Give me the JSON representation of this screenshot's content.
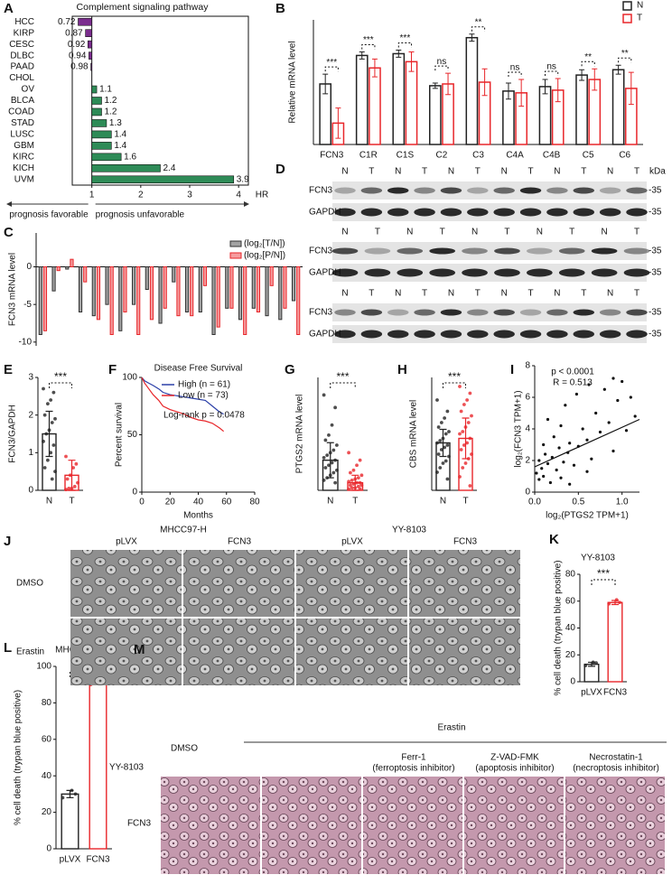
{
  "chart_data": [
    {
      "type": "bar",
      "orientation": "horizontal",
      "panel": "A",
      "title": "Complement signaling pathway",
      "categories": [
        "HCC",
        "KIRP",
        "CESC",
        "DLBC",
        "PAAD",
        "CHOL",
        "OV",
        "BLCA",
        "COAD",
        "STAD",
        "LUSC",
        "GBM",
        "KIRC",
        "KICH",
        "UVM"
      ],
      "values": [
        0.72,
        0.87,
        0.92,
        0.94,
        0.98,
        null,
        1.1,
        1.2,
        1.2,
        1.3,
        1.4,
        1.4,
        1.6,
        2.4,
        3.9
      ],
      "base": 1,
      "color_below": "#7b2d8e",
      "color_above": "#2e8b57",
      "xlim": [
        0.6,
        4.2
      ],
      "xticks": [
        1,
        2,
        3,
        4
      ],
      "xlabel": "HR",
      "annotations": [
        "prognosis favorable",
        "prognosis unfavorable"
      ]
    },
    {
      "type": "bar",
      "panel": "B",
      "ylabel": "Relative mRNA level",
      "fill": "hollow",
      "legend": "top-right",
      "categories": [
        "FCN3",
        "C1R",
        "C1S",
        "C2",
        "C3",
        "C4A",
        "C4B",
        "C5",
        "C6"
      ],
      "series": [
        {
          "name": "N",
          "color": "#222222",
          "values": [
            6.8,
            10,
            10.2,
            6.6,
            12,
            6,
            6.5,
            7.8,
            8.4
          ],
          "errors": [
            1.1,
            0.4,
            0.4,
            0.3,
            0.4,
            0.9,
            0.8,
            0.6,
            0.5
          ]
        },
        {
          "name": "T",
          "color": "#e8262a",
          "values": [
            2.4,
            8.6,
            9.3,
            6.8,
            7,
            5.8,
            6.1,
            7.3,
            6.3
          ],
          "errors": [
            1.7,
            1,
            1.1,
            1.2,
            1.5,
            1.5,
            1.3,
            1.2,
            1.8
          ]
        }
      ],
      "significance": [
        "***",
        "***",
        "***",
        "ns",
        "**",
        "ns",
        "ns",
        "**",
        "**"
      ],
      "ylim": [
        0,
        14
      ]
    },
    {
      "type": "bar",
      "panel": "C",
      "ylabel": "FCN3 mRNA level",
      "legend": "top-right",
      "categories": [
        null,
        null,
        null,
        null,
        null,
        null,
        null,
        null,
        null,
        null,
        null,
        null,
        null,
        null,
        null,
        null,
        null,
        null,
        null,
        null
      ],
      "series": [
        {
          "name": "(log₂[T/N])",
          "color": "#333333",
          "values": [
            -9,
            -3.2,
            -0.3,
            -6,
            -6.5,
            -5,
            -8.5,
            -5,
            -3,
            -7.5,
            -2,
            -6,
            -6,
            -9,
            -5.5,
            -7,
            -5.5,
            -6.5,
            -7,
            -4.5
          ]
        },
        {
          "name": "(log₂[P/N])",
          "color": "#e8262a",
          "values": [
            -8.5,
            -0.5,
            1,
            -2,
            -7,
            -9,
            -6,
            -9,
            -7,
            -5.5,
            -6.5,
            -6.5,
            -2.5,
            -8,
            -5.5,
            -9,
            -6,
            -2.5,
            -5.5,
            -9
          ]
        }
      ],
      "ylim": [
        -10.5,
        4.5
      ],
      "yticks": [
        0,
        -5,
        -10
      ]
    },
    {
      "type": "dot_bar",
      "panel": "E",
      "ylabel": "FCN3/GAPDH",
      "categories": [
        "N",
        "T"
      ],
      "values": [
        1.5,
        0.4
      ],
      "errors": [
        0.6,
        0.4
      ],
      "points": [
        [
          2.7,
          2.6,
          2.4,
          2.3,
          2.0,
          1.9,
          1.8,
          1.6,
          1.5,
          1.3,
          1.2,
          1.0,
          0.8,
          0.6,
          0.5,
          0.3
        ],
        [
          0.9,
          0.7,
          0.6,
          0.4,
          0.3,
          0.2,
          0.1,
          0.05,
          0.05,
          0.02
        ]
      ],
      "colors": [
        "#222222",
        "#e8262a"
      ],
      "significance": "***",
      "ylim": [
        0,
        3
      ],
      "yticks": [
        0,
        1,
        2,
        3
      ]
    },
    {
      "type": "line",
      "panel": "F",
      "title": "Disease Free Survival",
      "xlabel": "Months",
      "ylabel": "Percent survival",
      "legend": "top-right",
      "series": [
        {
          "name": "High (n = 61)",
          "color": "#2b3fa8",
          "x": [
            0,
            2,
            5,
            8,
            12,
            15,
            20,
            25,
            30,
            35,
            40,
            45,
            50,
            55,
            58
          ],
          "values": [
            100,
            97,
            95,
            93,
            90,
            87,
            85,
            84,
            83,
            82,
            81,
            80,
            75,
            70,
            68
          ]
        },
        {
          "name": "Low (n = 73)",
          "color": "#e8262a",
          "x": [
            0,
            2,
            5,
            8,
            12,
            15,
            20,
            25,
            30,
            35,
            40,
            45,
            50,
            55,
            58
          ],
          "values": [
            100,
            95,
            90,
            85,
            80,
            75,
            72,
            70,
            68,
            65,
            63,
            62,
            60,
            56,
            53
          ]
        }
      ],
      "annotation": "Log-rank p = 0.0478",
      "xlim": [
        0,
        80
      ],
      "xticks": [
        0,
        20,
        40,
        60,
        80
      ],
      "ylim": [
        0,
        100
      ],
      "yticks": [
        0,
        50,
        100
      ]
    },
    {
      "type": "dot_bar",
      "panel": "G",
      "ylabel": "PTGS2 mRNA level",
      "categories": [
        "N",
        "T"
      ],
      "values": [
        1.2,
        0.3
      ],
      "errors": [
        0.7,
        0.3
      ],
      "points": [
        [
          3.8,
          3.3,
          2.6,
          2.2,
          2.0,
          1.8,
          1.6,
          1.5,
          1.4,
          1.3,
          1.2,
          1.1,
          1.0,
          0.9,
          0.8,
          0.7,
          0.6,
          0.5,
          0.4,
          0.3
        ],
        [
          1.5,
          1.2,
          1.0,
          0.8,
          0.7,
          0.6,
          0.5,
          0.45,
          0.4,
          0.35,
          0.3,
          0.3,
          0.25,
          0.2,
          0.2,
          0.15,
          0.1,
          0.1,
          0.05,
          0.05
        ]
      ],
      "colors": [
        "#222222",
        "#e8262a"
      ],
      "significance": "***",
      "ylim": [
        0,
        4.5
      ]
    },
    {
      "type": "dot_bar",
      "panel": "H",
      "ylabel": "CBS mRNA level",
      "categories": [
        "N",
        "T"
      ],
      "values": [
        2.1,
        2.3
      ],
      "errors": [
        0.6,
        0.9
      ],
      "points": [
        [
          4.0,
          3.5,
          3.2,
          3.0,
          2.8,
          2.6,
          2.5,
          2.3,
          2.2,
          2.1,
          2.0,
          1.9,
          1.8,
          1.6,
          1.5,
          1.3,
          1.2,
          1.0,
          0.8,
          0.5
        ],
        [
          4.6,
          4.3,
          4.0,
          3.8,
          3.5,
          3.3,
          3.0,
          2.8,
          2.6,
          2.5,
          2.3,
          2.1,
          2.0,
          1.8,
          1.6,
          1.4,
          1.2,
          1.0,
          0.6,
          0.2
        ]
      ],
      "colors": [
        "#222222",
        "#e8262a"
      ],
      "significance": "***",
      "ylim": [
        0,
        5
      ]
    },
    {
      "type": "scatter",
      "panel": "I",
      "xlabel": "log₂(PTGS2 TPM+1)",
      "ylabel": "log₂(FCN3 TPM+1)",
      "color": "#111111",
      "annotations": [
        "p < 0.0001",
        "R = 0.513"
      ],
      "x": [
        0.02,
        0.05,
        0.05,
        0.08,
        0.1,
        0.1,
        0.12,
        0.15,
        0.18,
        0.2,
        0.22,
        0.25,
        0.28,
        0.3,
        0.33,
        0.35,
        0.38,
        0.4,
        0.45,
        0.48,
        0.5,
        0.55,
        0.6,
        0.62,
        0.65,
        0.7,
        0.75,
        0.8,
        0.85,
        0.9,
        0.95,
        1.0,
        1.05,
        1.1,
        1.15,
        0.3,
        0.15,
        0.6,
        0.9,
        0.4
      ],
      "values": [
        1.2,
        2.0,
        0.8,
        1.5,
        3.0,
        1.0,
        2.4,
        1.8,
        0.6,
        2.2,
        3.5,
        1.4,
        2.8,
        4.2,
        1.9,
        5.5,
        2.5,
        3.1,
        1.7,
        6.2,
        2.9,
        4.0,
        3.3,
        6.8,
        2.1,
        5.0,
        3.8,
        6.5,
        4.4,
        2.6,
        5.8,
        7.0,
        3.9,
        6.0,
        4.8,
        0.9,
        4.6,
        1.3,
        7.2,
        0.5
      ],
      "trend": {
        "x": [
          0,
          1.2
        ],
        "values": [
          1.6,
          4.6
        ]
      },
      "xlim": [
        0,
        1.2
      ],
      "xticks": [
        {
          "value": 0,
          "label": "0.0"
        },
        {
          "value": 0.5,
          "label": "0.5"
        },
        {
          "value": 1,
          "label": "1.0"
        }
      ],
      "ylim": [
        0,
        8
      ],
      "yticks": [
        0,
        2,
        4,
        6,
        8
      ]
    },
    {
      "type": "dot_bar",
      "panel": "K",
      "title": "YY-8103",
      "ylabel": "% cell death (trypan blue positive)",
      "categories": [
        "pLVX",
        "FCN3"
      ],
      "values": [
        13,
        59
      ],
      "errors": [
        1.5,
        1.5
      ],
      "points": [
        [
          12,
          14,
          14.5
        ],
        [
          58,
          59,
          61
        ]
      ],
      "colors": [
        "#222222",
        "#e8262a"
      ],
      "significance": "***",
      "ylim": [
        0,
        80
      ],
      "yticks": [
        0,
        20,
        40,
        60,
        80
      ]
    },
    {
      "type": "dot_bar",
      "panel": "L",
      "title": "MHCC97-H",
      "ylabel": "% cell death (trypan blue positive)",
      "categories": [
        "pLVX",
        "FCN3"
      ],
      "values": [
        30,
        92
      ],
      "errors": [
        2,
        1.5
      ],
      "points": [
        [
          28,
          30,
          32
        ],
        [
          90,
          92,
          93
        ]
      ],
      "colors": [
        "#222222",
        "#e8262a"
      ],
      "significance": "***",
      "ylim": [
        0,
        100
      ],
      "yticks": [
        0,
        20,
        40,
        60,
        80,
        100
      ]
    }
  ],
  "blots": {
    "panel": "D",
    "unit": "kDa",
    "groups": [
      {
        "lanes": [
          "N",
          "T",
          "N",
          "T",
          "N",
          "T",
          "N",
          "T",
          "N",
          "T",
          "N",
          "T"
        ],
        "bands": [
          {
            "name": "FCN3",
            "marker": "-35"
          },
          {
            "name": "GAPDH",
            "marker": "-35"
          }
        ]
      },
      {
        "lanes": [
          "N",
          "T",
          "N",
          "T",
          "N",
          "T",
          "N",
          "T",
          "N",
          "T"
        ],
        "bands": [
          {
            "name": "FCN3",
            "marker": "-35"
          },
          {
            "name": "GAPDH",
            "marker": "-35"
          }
        ]
      },
      {
        "lanes": [
          "N",
          "T",
          "N",
          "T",
          "N",
          "T",
          "N",
          "T",
          "N",
          "T",
          "N",
          "T"
        ],
        "bands": [
          {
            "name": "FCN3",
            "marker": "-35"
          },
          {
            "name": "GAPDH",
            "marker": "-35"
          }
        ]
      }
    ]
  },
  "micrographs": {
    "panel": "J",
    "cell_lines": [
      "MHCC97-H",
      "YY-8103"
    ],
    "columns": [
      "pLVX",
      "FCN3",
      "pLVX",
      "FCN3"
    ],
    "rows": [
      "DMSO",
      "Erastin"
    ]
  },
  "inhibitor_panel": {
    "panel": "M",
    "control": "DMSO",
    "treatment": "Erastin",
    "cell_line": "YY-8103",
    "construct": "FCN3",
    "inhibitors": [
      {
        "name": "Ferr-1",
        "role": "(ferroptosis inhibitor)"
      },
      {
        "name": "Z-VAD-FMK",
        "role": "(apoptosis inhibitor)"
      },
      {
        "name": "Necrostatin-1",
        "role": "(necroptosis inhibitor)"
      }
    ]
  }
}
